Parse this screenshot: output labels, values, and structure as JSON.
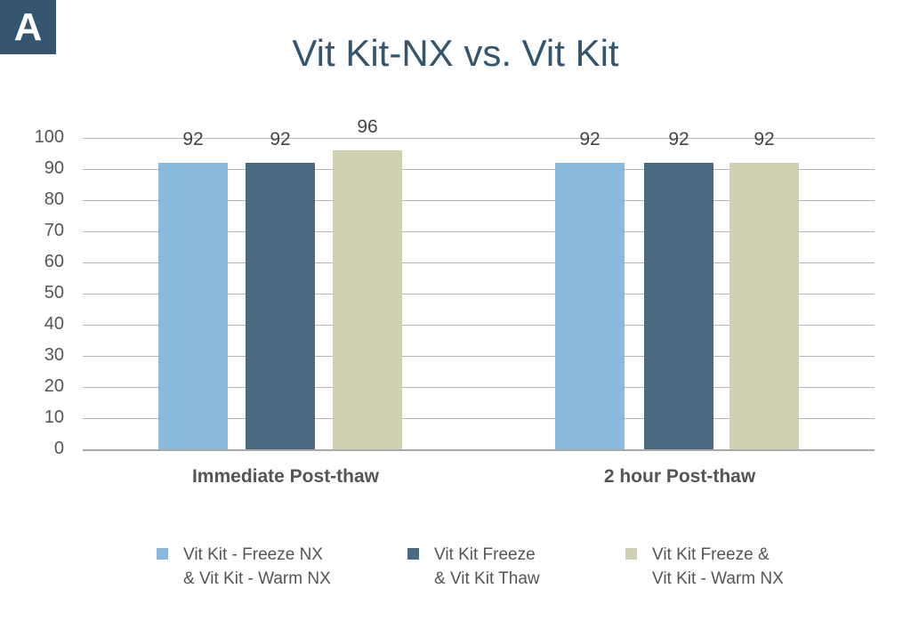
{
  "panel_label": "A",
  "chart_data": {
    "type": "bar",
    "title": "Vit Kit-NX vs. Vit Kit",
    "xlabel": "",
    "ylabel": "",
    "ylim": [
      0,
      100
    ],
    "yticks": [
      0,
      10,
      20,
      30,
      40,
      50,
      60,
      70,
      80,
      90,
      100
    ],
    "grid": true,
    "legend_position": "bottom",
    "categories": [
      "Immediate Post-thaw",
      "2 hour Post-thaw"
    ],
    "series": [
      {
        "name": "Vit Kit - Freeze NX & Vit Kit - Warm NX",
        "color": "#8ab9dc",
        "values": [
          92,
          92
        ]
      },
      {
        "name": "Vit Kit Freeze & Vit Kit Thaw",
        "color": "#496a80",
        "values": [
          92,
          92
        ]
      },
      {
        "name": "Vit Kit Freeze & Vit Kit - Warm NX",
        "color": "#cfd1b1",
        "values": [
          96,
          92
        ]
      }
    ]
  },
  "legend": [
    {
      "label": "Vit Kit - Freeze NX\n& Vit Kit - Warm NX",
      "color": "#8ab9dc"
    },
    {
      "label": "Vit Kit Freeze\n& Vit Kit Thaw",
      "color": "#496a80"
    },
    {
      "label": "Vit Kit Freeze &\nVit Kit - Warm NX",
      "color": "#cfd1b1"
    }
  ]
}
